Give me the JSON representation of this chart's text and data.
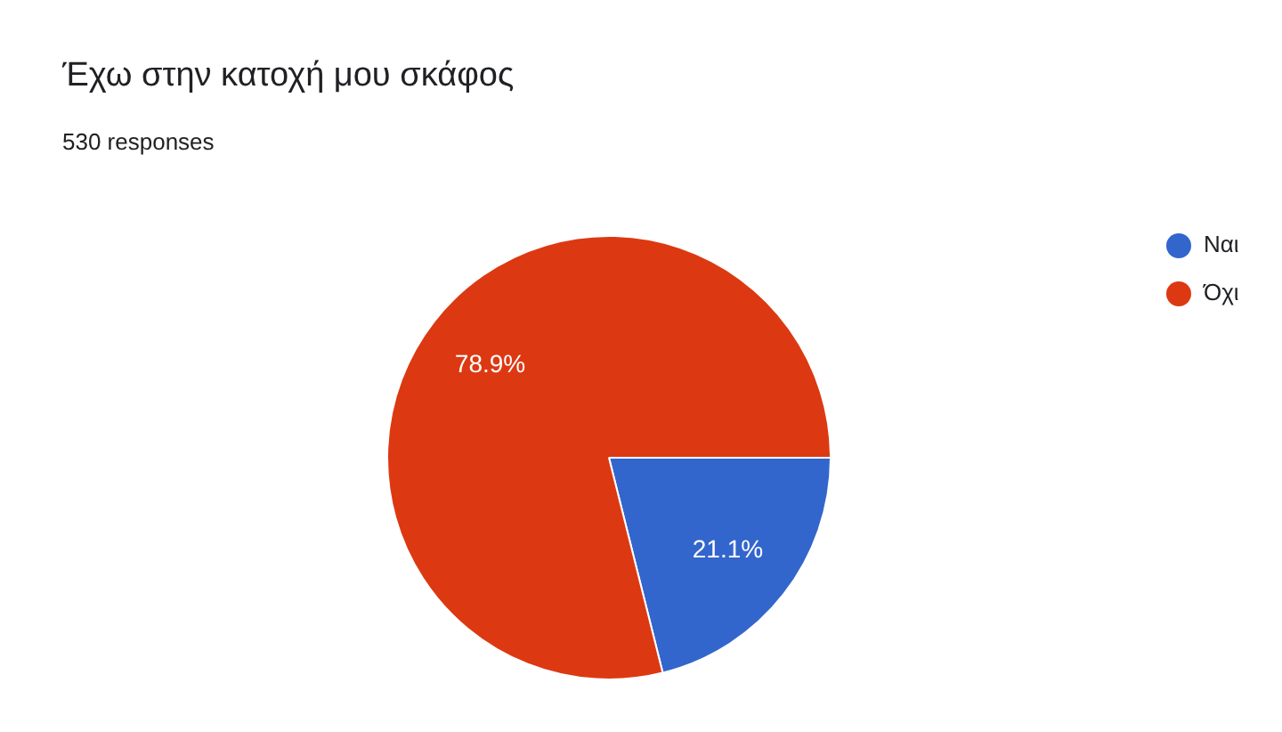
{
  "chart_data": {
    "type": "pie",
    "title": "Έχω στην κατοχή μου σκάφος",
    "subtitle": "530 responses",
    "categories": [
      "Ναι",
      "Όχι"
    ],
    "values": [
      21.1,
      78.9
    ],
    "colors": [
      "#3366cc",
      "#dc3912"
    ],
    "value_labels": [
      "21.1%",
      "78.9%"
    ],
    "legend": "top right"
  }
}
